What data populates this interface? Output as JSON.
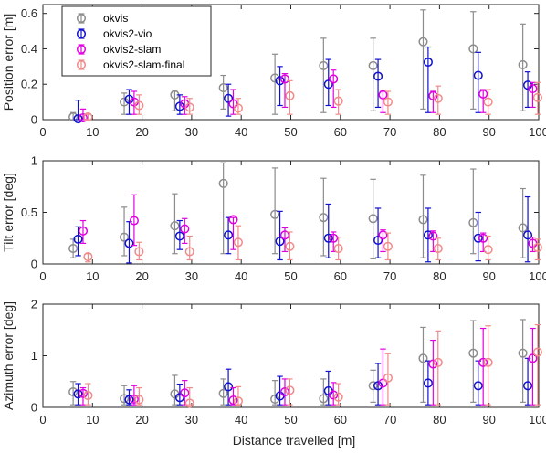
{
  "figure": {
    "xlabel": "Distance travelled [m]"
  },
  "legend": {
    "entries": [
      {
        "name": "okvis",
        "color": "#8c8c8c"
      },
      {
        "name": "okvis2-vio",
        "color": "#1010d0"
      },
      {
        "name": "okvis2-slam",
        "color": "#e000e0"
      },
      {
        "name": "okvis2-slam-final",
        "color": "#f08a8a"
      }
    ]
  },
  "chart_data": [
    {
      "type": "scatter",
      "subtype": "errorbar",
      "ylabel": "Position error [m]",
      "xlabel": "",
      "xlim": [
        0,
        100
      ],
      "ylim": [
        0,
        0.65
      ],
      "xticks": [
        0,
        10,
        20,
        30,
        40,
        50,
        60,
        70,
        80,
        90,
        100
      ],
      "yticks": [
        0,
        0.2,
        0.4,
        0.6
      ],
      "ytick_labels": [
        "0",
        "0.2",
        "0.4",
        "0.6"
      ],
      "grid": false,
      "legend_position": "top-left",
      "series": [
        {
          "name": "okvis",
          "color": "#8c8c8c",
          "x": [
            6.1,
            16.4,
            26.6,
            36.4,
            46.8,
            56.6,
            66.6,
            76.7,
            86.8,
            96.8
          ],
          "y": [
            0.015,
            0.1,
            0.14,
            0.18,
            0.235,
            0.305,
            0.305,
            0.44,
            0.4,
            0.31
          ],
          "low": [
            0.0,
            0.03,
            0.05,
            0.06,
            0.03,
            0.04,
            0.05,
            0.06,
            0.06,
            0.05
          ],
          "high": [
            0.04,
            0.15,
            0.16,
            0.25,
            0.37,
            0.46,
            0.46,
            0.62,
            0.61,
            0.54
          ]
        },
        {
          "name": "okvis2-vio",
          "color": "#1010d0",
          "x": [
            7.1,
            17.4,
            27.6,
            37.4,
            47.8,
            57.6,
            67.6,
            77.7,
            87.8,
            97.8
          ],
          "y": [
            0.005,
            0.115,
            0.075,
            0.12,
            0.22,
            0.2,
            0.245,
            0.325,
            0.25,
            0.195
          ],
          "low": [
            0.0,
            0.03,
            0.03,
            0.02,
            0.08,
            0.08,
            0.07,
            0.04,
            0.04,
            0.07
          ],
          "high": [
            0.11,
            0.17,
            0.14,
            0.2,
            0.3,
            0.34,
            0.34,
            0.41,
            0.38,
            0.27
          ]
        },
        {
          "name": "okvis2-slam",
          "color": "#e000e0",
          "x": [
            8.1,
            18.4,
            28.6,
            38.4,
            48.8,
            58.6,
            68.6,
            78.7,
            88.8,
            98.8
          ],
          "y": [
            0.01,
            0.1,
            0.09,
            0.09,
            0.23,
            0.23,
            0.14,
            0.135,
            0.145,
            0.175
          ],
          "low": [
            0.0,
            0.03,
            0.03,
            0.03,
            0.07,
            0.07,
            0.04,
            0.04,
            0.04,
            0.07
          ],
          "high": [
            0.06,
            0.16,
            0.13,
            0.17,
            0.26,
            0.28,
            0.16,
            0.16,
            0.17,
            0.21
          ]
        },
        {
          "name": "okvis2-slam-final",
          "color": "#f08a8a",
          "x": [
            9.1,
            19.4,
            29.6,
            39.4,
            49.8,
            59.6,
            69.6,
            79.7,
            89.8,
            99.8
          ],
          "y": [
            0.015,
            0.08,
            0.07,
            0.065,
            0.135,
            0.105,
            0.1,
            0.12,
            0.1,
            0.125
          ],
          "low": [
            0.0,
            0.03,
            0.03,
            0.03,
            0.03,
            0.03,
            0.03,
            0.03,
            0.03,
            0.03
          ],
          "high": [
            0.03,
            0.14,
            0.12,
            0.12,
            0.22,
            0.17,
            0.16,
            0.19,
            0.17,
            0.21
          ]
        }
      ]
    },
    {
      "type": "scatter",
      "subtype": "errorbar",
      "ylabel": "Tilt error [deg]",
      "xlabel": "",
      "xlim": [
        0,
        100
      ],
      "ylim": [
        0,
        1.0
      ],
      "xticks": [
        0,
        10,
        20,
        30,
        40,
        50,
        60,
        70,
        80,
        90,
        100
      ],
      "yticks": [
        0,
        0.5,
        1
      ],
      "ytick_labels": [
        "0",
        "0.5",
        "1"
      ],
      "grid": false,
      "series": [
        {
          "name": "okvis",
          "color": "#8c8c8c",
          "x": [
            6.1,
            16.4,
            26.6,
            36.4,
            46.8,
            56.6,
            66.6,
            76.7,
            86.8,
            96.8
          ],
          "y": [
            0.15,
            0.26,
            0.37,
            0.78,
            0.48,
            0.45,
            0.44,
            0.43,
            0.4,
            0.35
          ],
          "low": [
            0.06,
            0.08,
            0.1,
            0.1,
            0.1,
            0.08,
            0.05,
            0.06,
            0.1,
            0.06
          ],
          "high": [
            0.24,
            0.55,
            0.68,
            0.98,
            0.93,
            0.83,
            0.82,
            0.86,
            0.92,
            0.73
          ]
        },
        {
          "name": "okvis2-vio",
          "color": "#1010d0",
          "x": [
            7.1,
            17.4,
            27.6,
            37.4,
            47.8,
            57.6,
            67.6,
            77.7,
            87.8,
            97.8
          ],
          "y": [
            0.24,
            0.2,
            0.27,
            0.28,
            0.22,
            0.25,
            0.23,
            0.28,
            0.25,
            0.28
          ],
          "low": [
            0.08,
            0.01,
            0.14,
            0.1,
            0.04,
            0.06,
            0.06,
            0.02,
            0.03,
            0.02
          ],
          "high": [
            0.36,
            0.41,
            0.42,
            0.45,
            0.51,
            0.58,
            0.54,
            0.54,
            0.5,
            0.65
          ]
        },
        {
          "name": "okvis2-slam",
          "color": "#e000e0",
          "x": [
            8.1,
            18.4,
            28.6,
            38.4,
            48.8,
            58.6,
            68.6,
            78.7,
            88.8,
            98.8
          ],
          "y": [
            0.32,
            0.42,
            0.34,
            0.43,
            0.28,
            0.25,
            0.28,
            0.27,
            0.25,
            0.2
          ],
          "low": [
            0.2,
            0.18,
            0.2,
            0.14,
            0.12,
            0.12,
            0.12,
            0.12,
            0.12,
            0.12
          ],
          "high": [
            0.42,
            0.67,
            0.44,
            0.45,
            0.35,
            0.31,
            0.33,
            0.32,
            0.3,
            0.26
          ]
        },
        {
          "name": "okvis2-slam-final",
          "color": "#f08a8a",
          "x": [
            9.1,
            19.4,
            29.6,
            39.4,
            49.8,
            59.6,
            69.6,
            79.7,
            89.8,
            99.8
          ],
          "y": [
            0.07,
            0.12,
            0.12,
            0.21,
            0.17,
            0.15,
            0.17,
            0.15,
            0.14,
            0.16
          ],
          "low": [
            0.02,
            0.04,
            0.04,
            0.04,
            0.04,
            0.04,
            0.04,
            0.04,
            0.04,
            0.04
          ],
          "high": [
            0.1,
            0.21,
            0.27,
            0.37,
            0.31,
            0.26,
            0.3,
            0.25,
            0.27,
            0.24
          ]
        }
      ]
    },
    {
      "type": "scatter",
      "subtype": "errorbar",
      "ylabel": "Azimuth error [deg]",
      "xlabel": "Distance travelled [m]",
      "xlim": [
        0,
        100
      ],
      "ylim": [
        0,
        2.0
      ],
      "xticks": [
        0,
        10,
        20,
        30,
        40,
        50,
        60,
        70,
        80,
        90,
        100
      ],
      "yticks": [
        0,
        1,
        2
      ],
      "ytick_labels": [
        "0",
        "1",
        "2"
      ],
      "grid": false,
      "series": [
        {
          "name": "okvis",
          "color": "#8c8c8c",
          "x": [
            6.1,
            16.4,
            26.6,
            36.4,
            46.8,
            56.6,
            66.6,
            76.7,
            86.8,
            96.8
          ],
          "y": [
            0.3,
            0.17,
            0.26,
            0.27,
            0.16,
            0.17,
            0.42,
            0.95,
            1.05,
            1.05
          ],
          "low": [
            0.05,
            0.05,
            0.05,
            0.05,
            0.05,
            0.05,
            0.1,
            0.1,
            0.1,
            0.1
          ],
          "high": [
            0.5,
            0.42,
            0.62,
            0.55,
            0.52,
            0.55,
            0.72,
            1.55,
            1.68,
            1.7
          ]
        },
        {
          "name": "okvis2-vio",
          "color": "#1010d0",
          "x": [
            7.1,
            17.4,
            27.6,
            37.4,
            47.8,
            57.6,
            67.6,
            77.7,
            87.8,
            97.8
          ],
          "y": [
            0.26,
            0.15,
            0.19,
            0.4,
            0.22,
            0.32,
            0.42,
            0.47,
            0.42,
            0.42
          ],
          "low": [
            0.05,
            0.05,
            0.05,
            0.05,
            0.05,
            0.05,
            0.05,
            0.05,
            0.05,
            0.05
          ],
          "high": [
            0.46,
            0.34,
            0.45,
            0.74,
            0.6,
            0.7,
            0.85,
            0.9,
            0.9,
            0.95
          ]
        },
        {
          "name": "okvis2-slam",
          "color": "#e000e0",
          "x": [
            8.1,
            18.4,
            28.6,
            38.4,
            48.8,
            58.6,
            68.6,
            78.7,
            88.8,
            98.8
          ],
          "y": [
            0.27,
            0.16,
            0.28,
            0.14,
            0.3,
            0.24,
            0.47,
            0.84,
            0.87,
            0.95
          ],
          "low": [
            0.05,
            0.05,
            0.05,
            0.05,
            0.05,
            0.05,
            0.05,
            0.05,
            0.05,
            0.05
          ],
          "high": [
            0.38,
            0.42,
            0.52,
            0.38,
            0.55,
            0.48,
            1.13,
            1.3,
            1.53,
            1.53
          ]
        },
        {
          "name": "okvis2-slam-final",
          "color": "#f08a8a",
          "x": [
            9.1,
            19.4,
            29.6,
            39.4,
            49.8,
            59.6,
            69.6,
            79.7,
            89.8,
            99.8
          ],
          "y": [
            0.23,
            0.15,
            0.08,
            0.12,
            0.33,
            0.2,
            0.57,
            0.87,
            0.87,
            1.07
          ],
          "low": [
            0.05,
            0.05,
            0.05,
            0.05,
            0.05,
            0.05,
            0.05,
            0.05,
            0.05,
            0.05
          ],
          "high": [
            0.46,
            0.38,
            0.38,
            0.4,
            0.55,
            0.46,
            1.04,
            1.48,
            1.58,
            1.6
          ]
        }
      ]
    }
  ]
}
